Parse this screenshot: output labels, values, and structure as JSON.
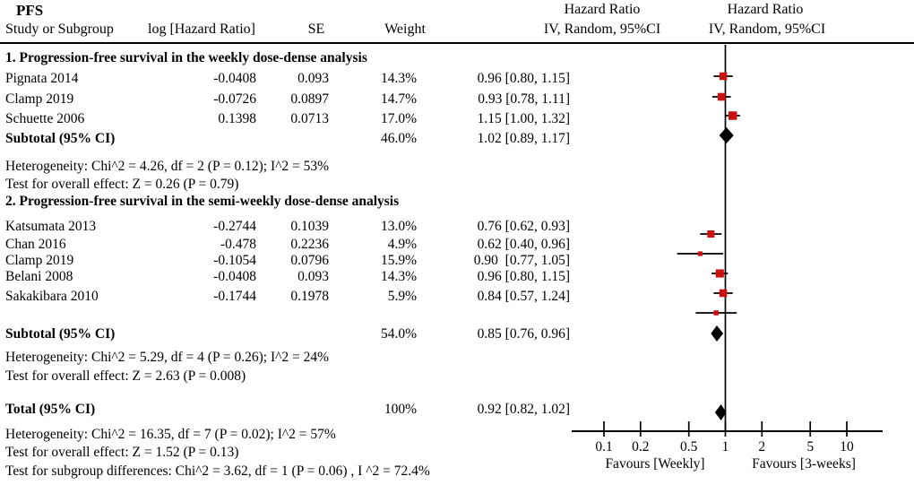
{
  "header": {
    "study_col": "Study or Subgroup",
    "loghr_col": "log [Hazard Ratio]",
    "se_col": "SE",
    "weight_col": "Weight",
    "hr_col_title": "Hazard Ratio",
    "hr_col_sub": "IV, Random, 95%CI",
    "plot_col_title": "Hazard Ratio",
    "plot_col_sub": "IV, Random, 95%CI"
  },
  "chart_data": {
    "type": "scatter",
    "subtype": "forest-plot-meta-analysis",
    "title": "PFS",
    "effect_measure": "Hazard Ratio, IV, Random, 95% CI",
    "xscale": "log",
    "xticks": [
      0.1,
      0.2,
      0.5,
      1,
      2,
      5,
      10
    ],
    "xtick_labels": [
      "0.1",
      "0.2",
      "0.5",
      "1",
      "2",
      "5",
      "10"
    ],
    "xlim": [
      0.054,
      19.7
    ],
    "axis_left_label": "Favours [Weekly]",
    "axis_right_label": "Favours [3-weeks]",
    "groups": [
      {
        "heading": "1. Progression-free survival in the weekly dose-dense analysis",
        "studies": [
          {
            "name": "Pignata 2014",
            "log_hr": "-0.0408",
            "se": "0.093",
            "weight": "14.3%",
            "weight_pct": 14.3,
            "hr": 0.96,
            "ci_low": 0.8,
            "ci_high": 1.15,
            "hr_text": "0.96 [0.80, 1.15]"
          },
          {
            "name": "Clamp 2019",
            "log_hr": "-0.0726",
            "se": "0.0897",
            "weight": "14.7%",
            "weight_pct": 14.7,
            "hr": 0.93,
            "ci_low": 0.78,
            "ci_high": 1.11,
            "hr_text": "0.93 [0.78, 1.11]"
          },
          {
            "name": "Schuette 2006",
            "log_hr": "0.1398",
            "se": "0.0713",
            "weight": "17.0%",
            "weight_pct": 17.0,
            "hr": 1.15,
            "ci_low": 1.0,
            "ci_high": 1.32,
            "hr_text": "1.15 [1.00, 1.32]"
          }
        ],
        "subtotal": {
          "label": "Subtotal (95% CI)",
          "weight": "46.0%",
          "hr": 1.02,
          "ci_low": 0.89,
          "ci_high": 1.17,
          "hr_text": "1.02 [0.89, 1.17]"
        },
        "heterogeneity": "Heterogeneity: Chi^2 = 4.26, df = 2 (P = 0.12); I^2 = 53%",
        "overall_effect": "Test for overall effect: Z = 0.26 (P = 0.79)"
      },
      {
        "heading": "2. Progression-free survival in the semi-weekly dose-dense analysis",
        "studies": [
          {
            "name": "Katsumata 2013",
            "log_hr": "-0.2744",
            "se": "0.1039",
            "weight": "13.0%",
            "weight_pct": 13.0,
            "hr": 0.76,
            "ci_low": 0.62,
            "ci_high": 0.93,
            "hr_text": "0.76 [0.62, 0.93]"
          },
          {
            "name": "Chan 2016",
            "log_hr": "-0.478",
            "se": "0.2236",
            "weight": "4.9%",
            "weight_pct": 4.9,
            "hr": 0.62,
            "ci_low": 0.4,
            "ci_high": 0.96,
            "hr_text": "0.62 [0.40, 0.96]"
          },
          {
            "name": "Clamp 2019",
            "log_hr": "-0.1054",
            "se": "0.0796",
            "weight": "15.9%",
            "weight_pct": 15.9,
            "hr": 0.9,
            "ci_low": 0.77,
            "ci_high": 1.05,
            "hr_text": "0.90  [0.77, 1.05]"
          },
          {
            "name": "Belani 2008",
            "log_hr": "-0.0408",
            "se": "0.093",
            "weight": "14.3%",
            "weight_pct": 14.3,
            "hr": 0.96,
            "ci_low": 0.8,
            "ci_high": 1.15,
            "hr_text": "0.96 [0.80, 1.15]"
          },
          {
            "name": "Sakakibara 2010",
            "log_hr": "-0.1744",
            "se": "0.1978",
            "weight": "5.9%",
            "weight_pct": 5.9,
            "hr": 0.84,
            "ci_low": 0.57,
            "ci_high": 1.24,
            "hr_text": "0.84 [0.57, 1.24]"
          }
        ],
        "subtotal": {
          "label": "Subtotal (95% CI)",
          "weight": "54.0%",
          "hr": 0.85,
          "ci_low": 0.76,
          "ci_high": 0.96,
          "hr_text": "0.85 [0.76, 0.96]"
        },
        "heterogeneity": "Heterogeneity: Chi^2 = 5.29, df = 4 (P = 0.26); I^2 = 24%",
        "overall_effect": "Test for overall effect: Z = 2.63 (P = 0.008)"
      }
    ],
    "total": {
      "label": "Total (95% CI)",
      "weight": "100%",
      "hr": 0.92,
      "ci_low": 0.82,
      "ci_high": 1.02,
      "hr_text": "0.92 [0.82, 1.02]"
    },
    "footer": {
      "heterogeneity": "Heterogeneity: Chi^2 = 16.35, df = 7 (P = 0.02); I^2 = 57%",
      "overall_effect": "Test for overall effect: Z = 1.52 (P = 0.13)",
      "subgroup_differences": "Test for subgroup differences: Chi^2 = 3.62, df = 1 (P = 0.06) , I ^2 = 72.4%"
    },
    "colors": {
      "marker": "#cc1111",
      "diamond": "#000000",
      "line": "#000000",
      "text": "#000000",
      "background": "#ffffff"
    }
  }
}
